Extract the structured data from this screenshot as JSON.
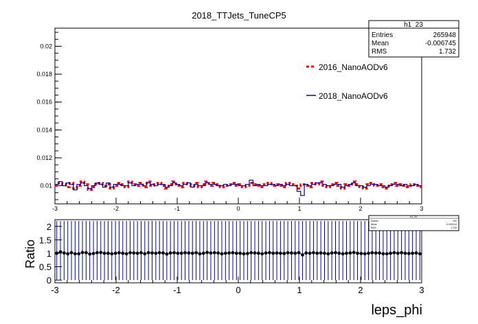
{
  "chart_data": [
    {
      "type": "line",
      "title": "2018_TTJets_TuneCP5",
      "xlabel": "",
      "ylabel": "",
      "xlim": [
        -3,
        3
      ],
      "ylim": [
        0.0087,
        0.0213
      ],
      "xticks": [
        "-3",
        "-2",
        "-1",
        "0",
        "1",
        "2",
        "3"
      ],
      "yticks": [
        "0.01",
        "0.012",
        "0.014",
        "0.016",
        "0.018",
        "0.02"
      ],
      "legend": [
        {
          "name": "2016_NanoAODv6",
          "color": "#ff0000",
          "style": "dashed"
        },
        {
          "name": "2018_NanoAODv6",
          "color": "#0000aa",
          "style": "solid"
        }
      ],
      "stats": {
        "title": "h1_23",
        "rows": [
          {
            "label": "Entries",
            "value": "265948"
          },
          {
            "label": "Mean",
            "value": "-0.006745"
          },
          {
            "label": "RMS",
            "value": "1.732"
          }
        ]
      },
      "series": [
        {
          "name": "2016_NanoAODv6",
          "bins": 100,
          "values": [
            0.01,
            0.0102,
            0.0101,
            0.0099,
            0.0102,
            0.0098,
            0.01,
            0.0103,
            0.0101,
            0.0097,
            0.0099,
            0.0101,
            0.0102,
            0.01,
            0.0101,
            0.0098,
            0.01,
            0.0102,
            0.0101,
            0.0099,
            0.0103,
            0.0101,
            0.01,
            0.0102,
            0.0099,
            0.0103,
            0.01,
            0.0101,
            0.0102,
            0.01,
            0.0098,
            0.0101,
            0.0103,
            0.01,
            0.0099,
            0.0102,
            0.0101,
            0.01,
            0.0102,
            0.0099,
            0.0101,
            0.0103,
            0.01,
            0.0102,
            0.0101,
            0.0099,
            0.01,
            0.0101,
            0.0102,
            0.01,
            0.0101,
            0.0099,
            0.01,
            0.0102,
            0.0101,
            0.01,
            0.0099,
            0.0101,
            0.0102,
            0.01,
            0.0101,
            0.01,
            0.0099,
            0.0102,
            0.0101,
            0.01,
            0.0098,
            0.0101,
            0.01,
            0.0099,
            0.0102,
            0.0101,
            0.0103,
            0.01,
            0.0099,
            0.0101,
            0.0102,
            0.01,
            0.0098,
            0.0101,
            0.01,
            0.0103,
            0.0101,
            0.0099,
            0.0098,
            0.0101,
            0.0102,
            0.01,
            0.0101,
            0.0099,
            0.0098,
            0.0101,
            0.0102,
            0.01,
            0.0101,
            0.01,
            0.0099,
            0.0101,
            0.01,
            0.0099
          ]
        },
        {
          "name": "2018_NanoAODv6",
          "bins": 100,
          "values": [
            0.0101,
            0.0103,
            0.01,
            0.0102,
            0.0101,
            0.0097,
            0.0101,
            0.0102,
            0.01,
            0.0098,
            0.01,
            0.0102,
            0.0101,
            0.0099,
            0.0102,
            0.0099,
            0.0101,
            0.0101,
            0.01,
            0.01,
            0.0102,
            0.01,
            0.0101,
            0.0101,
            0.01,
            0.0102,
            0.0101,
            0.01,
            0.0101,
            0.0101,
            0.0099,
            0.01,
            0.0102,
            0.0101,
            0.01,
            0.0101,
            0.0102,
            0.0099,
            0.0101,
            0.01,
            0.01,
            0.0102,
            0.0101,
            0.0101,
            0.01,
            0.01,
            0.0101,
            0.01,
            0.0101,
            0.0101,
            0.01,
            0.01,
            0.0101,
            0.0104,
            0.01,
            0.0101,
            0.01,
            0.01,
            0.0101,
            0.0101,
            0.01,
            0.0101,
            0.01,
            0.0101,
            0.01,
            0.01,
            0.0096,
            0.0093,
            0.0101,
            0.01,
            0.0101,
            0.0102,
            0.0102,
            0.0101,
            0.01,
            0.01,
            0.0101,
            0.0101,
            0.0099,
            0.01,
            0.0101,
            0.0102,
            0.01,
            0.01,
            0.0099,
            0.01,
            0.0101,
            0.0101,
            0.01,
            0.01,
            0.0099,
            0.01,
            0.0101,
            0.0101,
            0.01,
            0.0101,
            0.01,
            0.01,
            0.0101,
            0.01
          ]
        }
      ]
    },
    {
      "type": "scatter",
      "title": "",
      "xlabel": "leps_phi",
      "ylabel": "Ratio",
      "xlim": [
        -3,
        3
      ],
      "ylim": [
        -0.1,
        2.25
      ],
      "xticks": [
        "-3",
        "-2",
        "-1",
        "0",
        "1",
        "2",
        "3"
      ],
      "yticks": [
        "0",
        "0.5",
        "1",
        "1.5",
        "2"
      ],
      "error_bar": [
        0,
        2.2
      ],
      "stats": {
        "title": "h1_23",
        "rows": [
          {
            "label": "Entries",
            "value": "100"
          },
          {
            "label": "Mean",
            "value": "-0.002014"
          },
          {
            "label": "RMS",
            "value": "1.733"
          }
        ]
      },
      "series": [
        {
          "name": "",
          "bins": 100,
          "values": [
            1.0,
            1.05,
            1.01,
            0.98,
            1.02,
            0.98,
            0.98,
            1.03,
            1.02,
            0.97,
            0.99,
            1.02,
            1.03,
            1.0,
            1.0,
            0.98,
            1.0,
            1.02,
            1.0,
            0.98,
            1.02,
            1.01,
            1.0,
            1.02,
            0.98,
            1.02,
            1.01,
            1.0,
            1.02,
            1.01,
            0.97,
            1.01,
            1.02,
            1.0,
            1.0,
            1.02,
            1.01,
            1.0,
            1.02,
            0.98,
            1.0,
            1.03,
            1.01,
            1.02,
            1.01,
            0.98,
            1.0,
            1.01,
            1.02,
            1.0,
            1.0,
            0.98,
            0.99,
            1.02,
            1.01,
            1.0,
            0.98,
            1.01,
            1.02,
            1.0,
            1.01,
            1.0,
            0.99,
            1.02,
            1.01,
            1.0,
            1.02,
            0.94,
            1.01,
            1.0,
            1.02,
            1.0,
            1.01,
            1.0,
            0.98,
            1.01,
            1.02,
            1.0,
            0.98,
            1.0,
            1.01,
            1.03,
            1.0,
            0.99,
            0.98,
            1.0,
            1.02,
            1.01,
            1.01,
            0.98,
            0.98,
            1.0,
            1.02,
            1.0,
            1.02,
            1.0,
            0.99,
            1.0,
            1.01,
            0.98
          ]
        }
      ]
    }
  ]
}
